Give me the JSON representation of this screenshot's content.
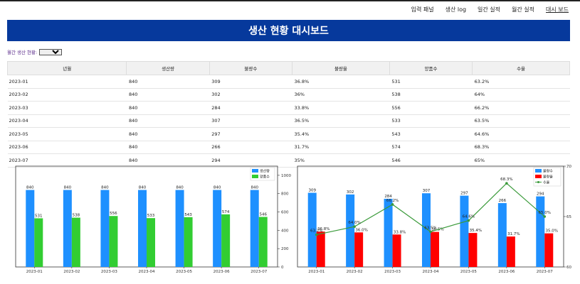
{
  "nav": {
    "items": [
      {
        "label": "입력 패널",
        "name": "nav-input-panel",
        "active": false
      },
      {
        "label": "생산 log",
        "name": "nav-production-log",
        "active": false
      },
      {
        "label": "일간 실적",
        "name": "nav-daily-results",
        "active": false
      },
      {
        "label": "월간 실적",
        "name": "nav-monthly-results",
        "active": false
      },
      {
        "label": "대시 보드",
        "name": "nav-dashboard",
        "active": true
      }
    ]
  },
  "banner": {
    "title": "생산 현황 대시보드"
  },
  "filter": {
    "label": "월간 생산 현황:",
    "selected": ""
  },
  "table": {
    "headers": [
      "년월",
      "생산량",
      "불량수",
      "불량율",
      "양품수",
      "수율"
    ],
    "rows": [
      [
        "2023-01",
        "840",
        "309",
        "36.8%",
        "531",
        "63.2%"
      ],
      [
        "2023-02",
        "840",
        "302",
        "36%",
        "538",
        "64%"
      ],
      [
        "2023-03",
        "840",
        "284",
        "33.8%",
        "556",
        "66.2%"
      ],
      [
        "2023-04",
        "840",
        "307",
        "36.5%",
        "533",
        "63.5%"
      ],
      [
        "2023-05",
        "840",
        "297",
        "35.4%",
        "543",
        "64.6%"
      ],
      [
        "2023-06",
        "840",
        "266",
        "31.7%",
        "574",
        "68.3%"
      ],
      [
        "2023-07",
        "840",
        "294",
        "35%",
        "546",
        "65%"
      ]
    ]
  },
  "chart_data": [
    {
      "type": "bar",
      "categories": [
        "2023-01",
        "2023-02",
        "2023-03",
        "2023-04",
        "2023-05",
        "2023-06",
        "2023-07"
      ],
      "series": [
        {
          "name": "생산량",
          "values": [
            840,
            840,
            840,
            840,
            840,
            840,
            840
          ],
          "color": "#1e90ff"
        },
        {
          "name": "양품수",
          "values": [
            531,
            538,
            556,
            533,
            543,
            574,
            546
          ],
          "color": "#32cd32"
        }
      ],
      "ylim": [
        0,
        1100
      ],
      "yticks": [
        0,
        200,
        400,
        600,
        800,
        1000
      ],
      "yaxis_side": "right",
      "legend": "top-right",
      "grid": false
    },
    {
      "type": "bar+line",
      "categories": [
        "2023-01",
        "2023-02",
        "2023-03",
        "2023-04",
        "2023-05",
        "2023-06",
        "2023-07"
      ],
      "series": [
        {
          "name": "불량수",
          "kind": "bar",
          "values": [
            309,
            302,
            284,
            307,
            297,
            266,
            294
          ],
          "color": "#1e90ff"
        },
        {
          "name": "불량율",
          "kind": "bar",
          "values": [
            36.8,
            36.0,
            33.8,
            36.5,
            35.4,
            31.7,
            35.0
          ],
          "labels": [
            "36.8%",
            "36.0%",
            "33.8%",
            "36.5%",
            "35.4%",
            "31.7%",
            "35.0%"
          ],
          "color": "#ff0000"
        },
        {
          "name": "수율",
          "kind": "line",
          "values": [
            63.2,
            64.0,
            66.2,
            63.5,
            64.6,
            68.3,
            65.0
          ],
          "labels": [
            "63.2%",
            "64.0%",
            "66.2%",
            "63.5%",
            "64.6%",
            "68.3%",
            "65.0%"
          ],
          "color": "#3a9a3a"
        }
      ],
      "ylim_right": [
        60,
        70
      ],
      "yticks_right": [
        60,
        65,
        70
      ],
      "legend": "top-right",
      "grid": false
    }
  ]
}
